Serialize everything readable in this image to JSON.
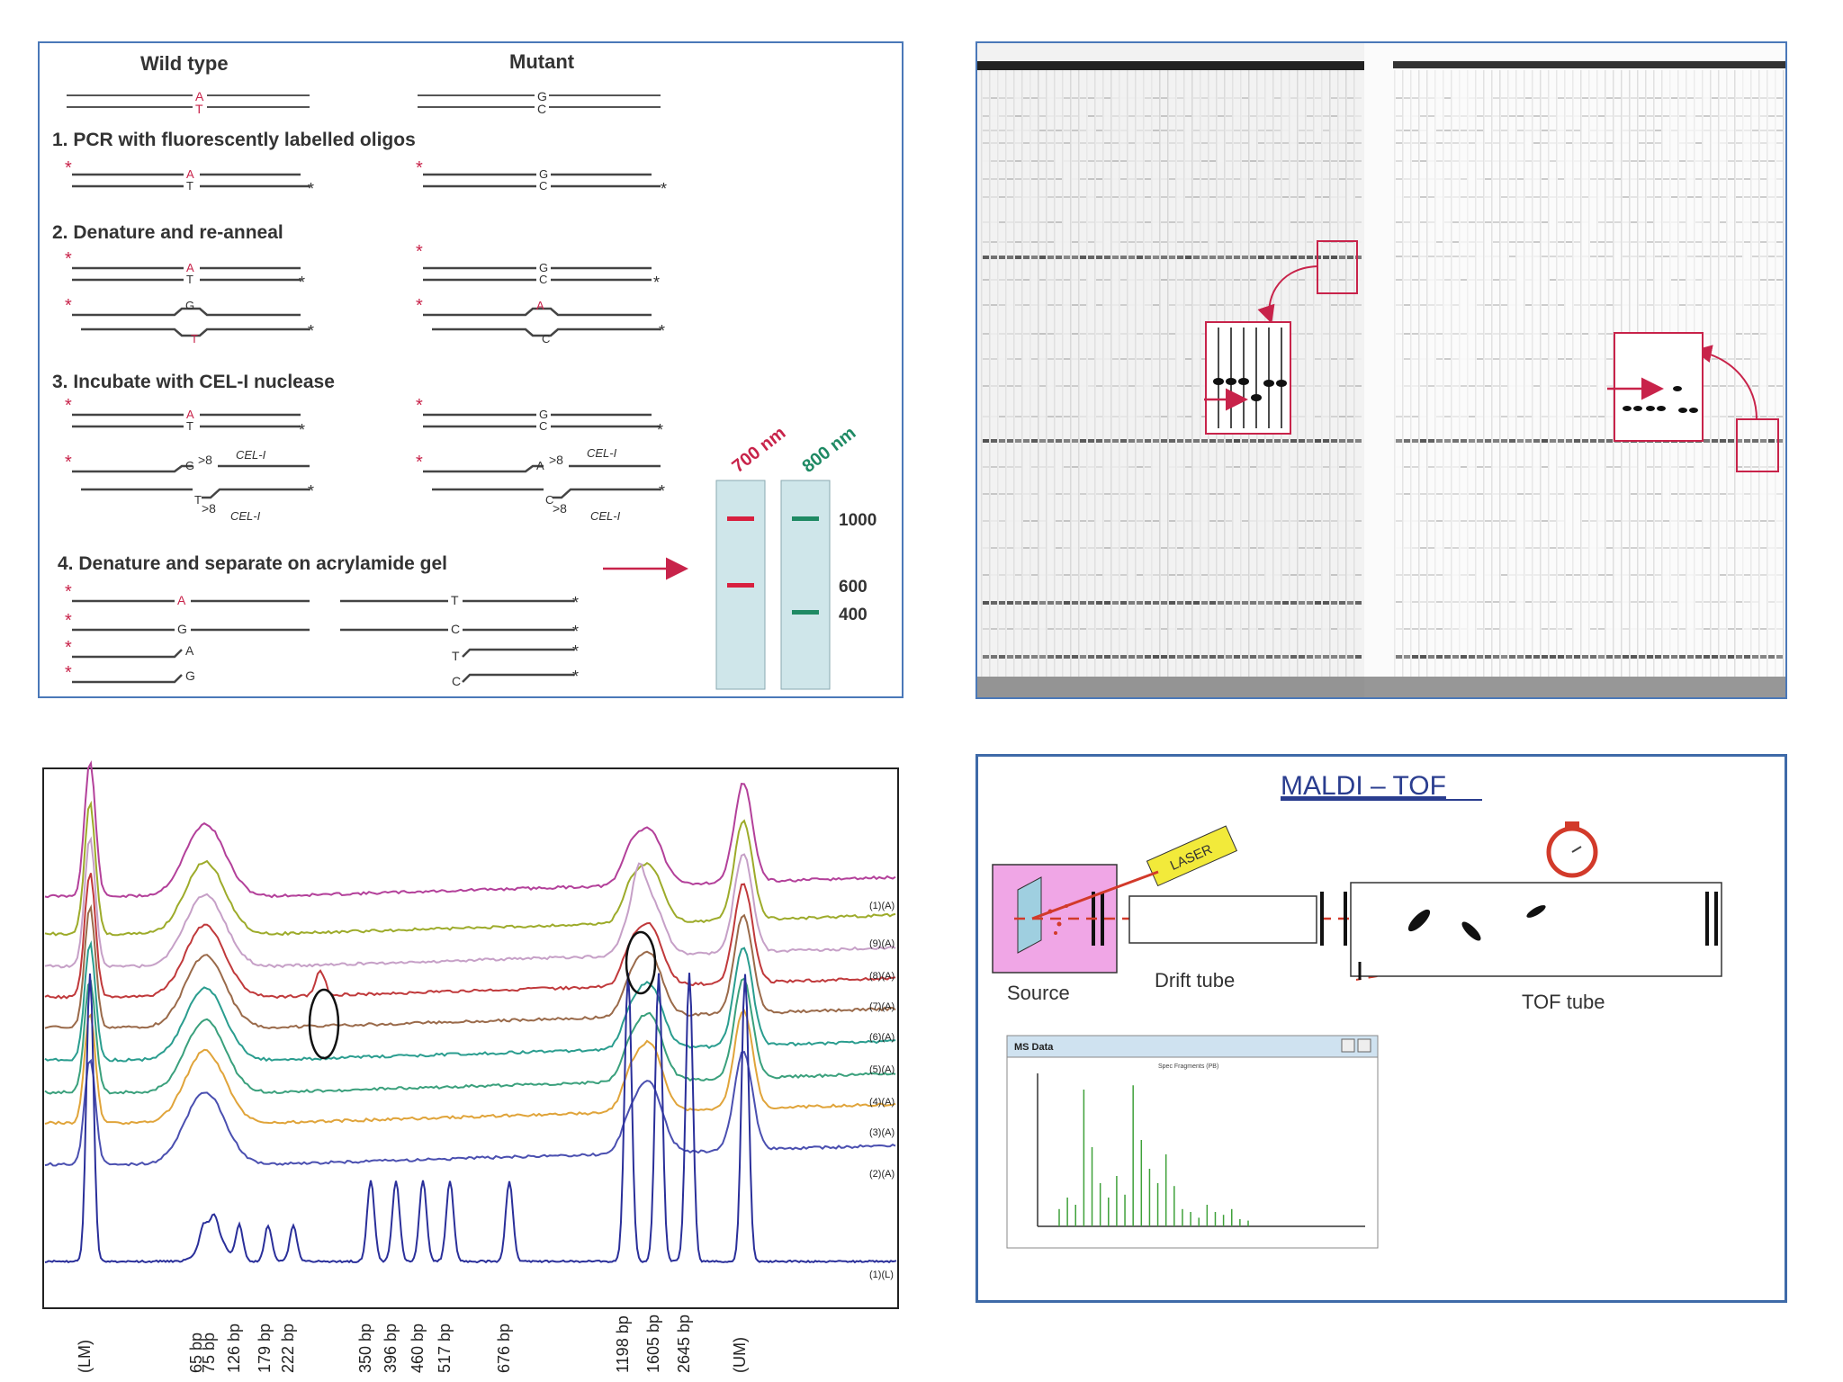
{
  "cel1_panel": {
    "header_wild_type": "Wild type",
    "header_mutant": "Mutant",
    "step1": "1. PCR with fluorescently labelled oligos",
    "step2": "2. Denature and re-anneal",
    "step3": "3. Incubate with CEL-I nuclease",
    "step4": "4. Denature and separate on acrylamide gel",
    "enzyme_label": "CEL-I",
    "bases": {
      "A": "A",
      "T": "T",
      "G": "G",
      "C": "C"
    },
    "lane1_label": "700 nm",
    "lane2_label": "800 nm",
    "size_1000": "1000",
    "size_600": "600",
    "size_400": "400",
    "colors": {
      "strand": "#333333",
      "star": "#c8234a",
      "lane_bg": "#cfe6ea",
      "band_700": "#d8203f",
      "band_800": "#1f8a64",
      "arrow": "#c8234a",
      "border": "#4a78b8"
    }
  },
  "electropherogram": {
    "trace_labels": [
      "(1)(A)",
      "(9)(A)",
      "(8)(A)",
      "(7)(A)",
      "(6)(A)",
      "(5)(A)",
      "(4)(A)",
      "(3)(A)",
      "(2)(A)",
      "(1)(L)"
    ],
    "trace_colors": [
      "#b3409a",
      "#9dab2a",
      "#c6a0c7",
      "#c0393b",
      "#9a6a4a",
      "#2a9d8f",
      "#3aa07c",
      "#e0a43a",
      "#4a4fb0"
    ],
    "ladder_color": "#2a2f9a",
    "ladder_labels": [
      "(LM)",
      "65 bp",
      "75 bp",
      "126 bp",
      "179 bp",
      "222 bp",
      "350 bp",
      "396 bp",
      "460 bp",
      "517 bp",
      "676 bp",
      "1198 bp",
      "1605 bp",
      "2645 bp",
      "(UM)"
    ]
  },
  "maldi": {
    "title": "MALDI – TOF",
    "laser_label": "LASER",
    "source_label": "Source",
    "drift_label": "Drift tube",
    "tof_label": "TOF tube",
    "ms_window_title": "MS Data",
    "ms_plot_title": "Spec Fragments (PB)",
    "ms_peaks": [
      0.12,
      0.2,
      0.15,
      0.95,
      0.55,
      0.3,
      0.2,
      0.35,
      0.22,
      0.98,
      0.6,
      0.4,
      0.3,
      0.5,
      0.28,
      0.12,
      0.1,
      0.06,
      0.15,
      0.1,
      0.08,
      0.12,
      0.05,
      0.04
    ],
    "colors": {
      "title": "#2a3d8f",
      "source_bg": "#f0a6e6",
      "laser_bg": "#f2ea3a",
      "beam": "#d23a2a",
      "peaks": "#3fa13a"
    }
  }
}
